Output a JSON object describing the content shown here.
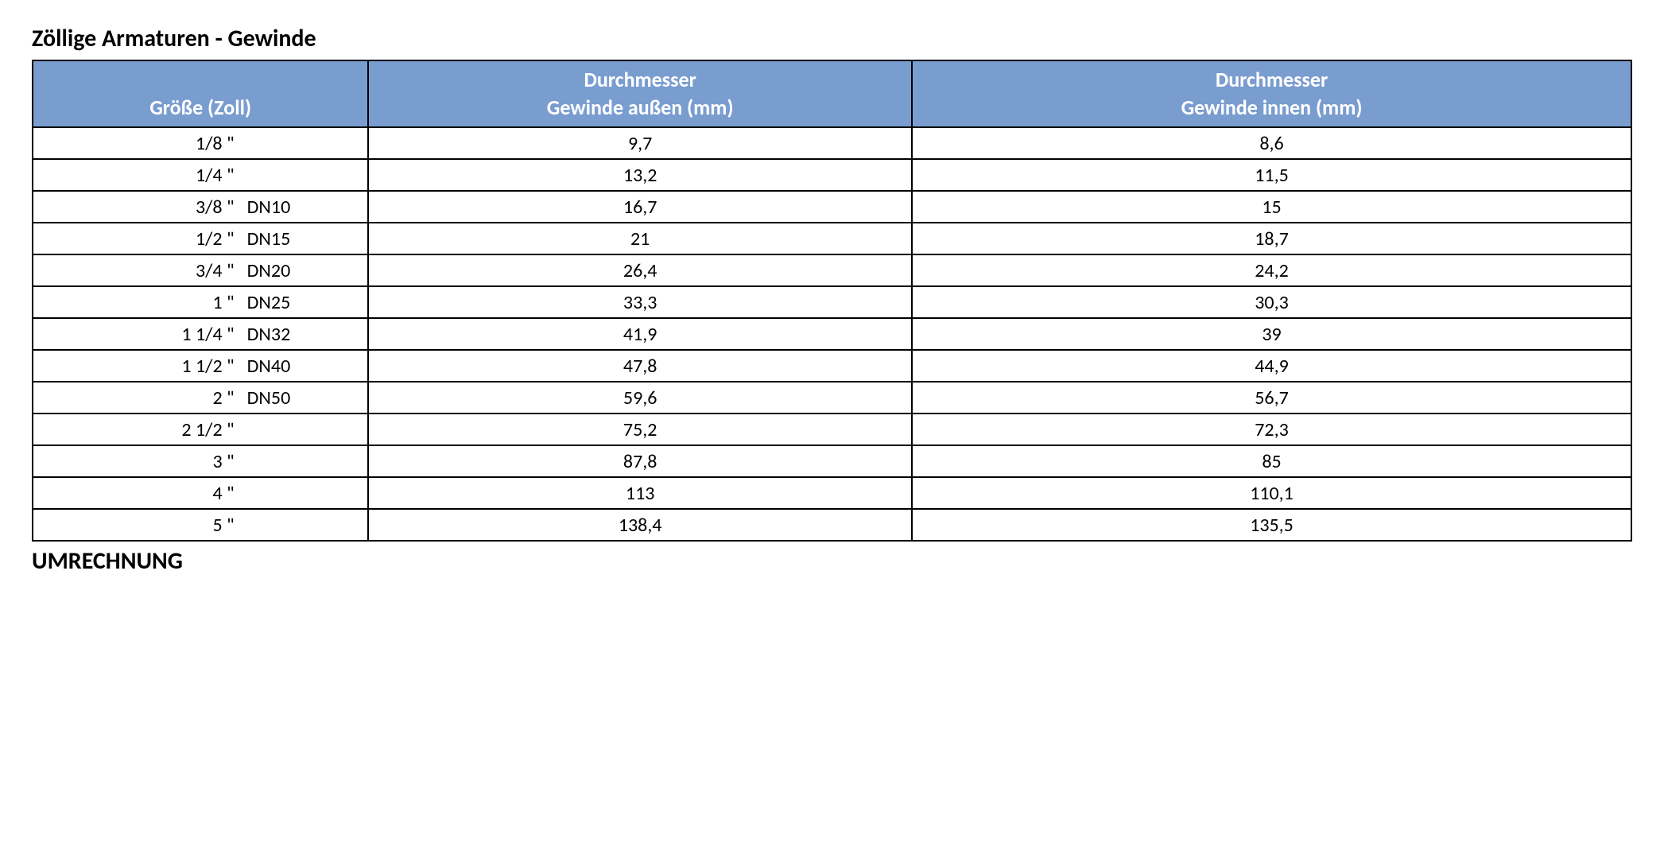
{
  "title": "Zöllige Armaturen - Gewinde",
  "subtitle": "UMRECHNUNG",
  "table": {
    "type": "table",
    "header_bg": "#7a9dd0",
    "header_fg": "#ffffff",
    "border_color": "#000000",
    "cell_bg": "#ffffff",
    "cell_fg": "#000000",
    "title_fontsize": 30,
    "header_fontsize": 26,
    "cell_fontsize": 24,
    "columns": [
      {
        "label": "Größe (Zoll)",
        "width_pct": 21,
        "align": "center"
      },
      {
        "label_line1": "Durchmesser",
        "label_line2": "Gewinde außen (mm)",
        "width_pct": 34,
        "align": "center"
      },
      {
        "label_line1": "Durchmesser",
        "label_line2": "Gewinde innen (mm)",
        "width_pct": 45,
        "align": "center"
      }
    ],
    "rows": [
      {
        "inch": "1/8 \"",
        "dn": "",
        "outer": "9,7",
        "inner": "8,6"
      },
      {
        "inch": "1/4 \"",
        "dn": "",
        "outer": "13,2",
        "inner": "11,5"
      },
      {
        "inch": "3/8 \"",
        "dn": "DN10",
        "outer": "16,7",
        "inner": "15"
      },
      {
        "inch": "1/2 \"",
        "dn": "DN15",
        "outer": "21",
        "inner": "18,7"
      },
      {
        "inch": "3/4 \"",
        "dn": "DN20",
        "outer": "26,4",
        "inner": "24,2"
      },
      {
        "inch": "1 \"",
        "dn": "DN25",
        "outer": "33,3",
        "inner": "30,3"
      },
      {
        "inch": "1 1/4 \"",
        "dn": "DN32",
        "outer": "41,9",
        "inner": "39"
      },
      {
        "inch": "1 1/2 \"",
        "dn": "DN40",
        "outer": "47,8",
        "inner": "44,9"
      },
      {
        "inch": "2 \"",
        "dn": "DN50",
        "outer": "59,6",
        "inner": "56,7"
      },
      {
        "inch": "2 1/2 \"",
        "dn": "",
        "outer": "75,2",
        "inner": "72,3"
      },
      {
        "inch": "3 \"",
        "dn": "",
        "outer": "87,8",
        "inner": "85"
      },
      {
        "inch": "4 \"",
        "dn": "",
        "outer": "113",
        "inner": "110,1"
      },
      {
        "inch": "5 \"",
        "dn": "",
        "outer": "138,4",
        "inner": "135,5"
      }
    ]
  }
}
